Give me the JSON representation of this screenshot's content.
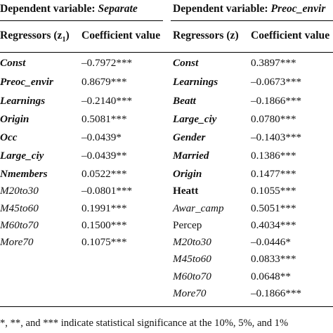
{
  "table": {
    "left_group_title": "Dependent variable: ",
    "left_group_var": "Separate",
    "right_group_title": "Dependent variable: ",
    "right_group_var": "Preoc_envir",
    "left_col_header_regressors": "Regressors (z",
    "left_col_header_sub": "1",
    "left_col_header_close": ")",
    "left_col_header_value": "Coefficient value",
    "right_col_header_regressors": "Regressors (z)",
    "right_col_header_value": "Coefficient value",
    "left_rows": [
      {
        "name": "Const",
        "value": "–0.7972***"
      },
      {
        "name": "Preoc_envir",
        "value": "0.8679***"
      },
      {
        "name": "Learnings",
        "value": "–0.2140***"
      },
      {
        "name": "Origin",
        "value": "0.5081***"
      },
      {
        "name": "Occ",
        "value": "–0.0439*"
      },
      {
        "name": "Large_ciy",
        "value": "–0.0439**"
      },
      {
        "name": "Nmembers",
        "value": "0.0522***"
      },
      {
        "name": "M20to30",
        "value": "–0.0801***"
      },
      {
        "name": "M45to60",
        "value": "0.1991***"
      },
      {
        "name": "M60to70",
        "value": "0.1500***"
      },
      {
        "name": "More70",
        "value": "0.1075***"
      }
    ],
    "right_rows": [
      {
        "name": "Const",
        "value": "0.3897***"
      },
      {
        "name": "Learnings",
        "value": "–0.0673***"
      },
      {
        "name": "Beatt",
        "value": "–0.1866***"
      },
      {
        "name": "Large_ciy",
        "value": "0.0780***"
      },
      {
        "name": "Gender",
        "value": "–0.1403***"
      },
      {
        "name": "Married",
        "value": "0.1386***"
      },
      {
        "name": "Origin",
        "value": "0.1477***"
      },
      {
        "name": "Heatt",
        "value": "0.1055***"
      },
      {
        "name": "Awar_camp",
        "value": "0.5051***"
      },
      {
        "name": "Percep",
        "value": "0.4034***"
      },
      {
        "name": "M20to30",
        "value": "–0.0446*"
      },
      {
        "name": "M45to60",
        "value": "0.0833***"
      },
      {
        "name": "M60to70",
        "value": "0.0648**"
      },
      {
        "name": "More70",
        "value": "–0.1866***"
      }
    ],
    "footnote": "*, **, and *** indicate statistical significance at the 10%, 5%, and 1%"
  }
}
